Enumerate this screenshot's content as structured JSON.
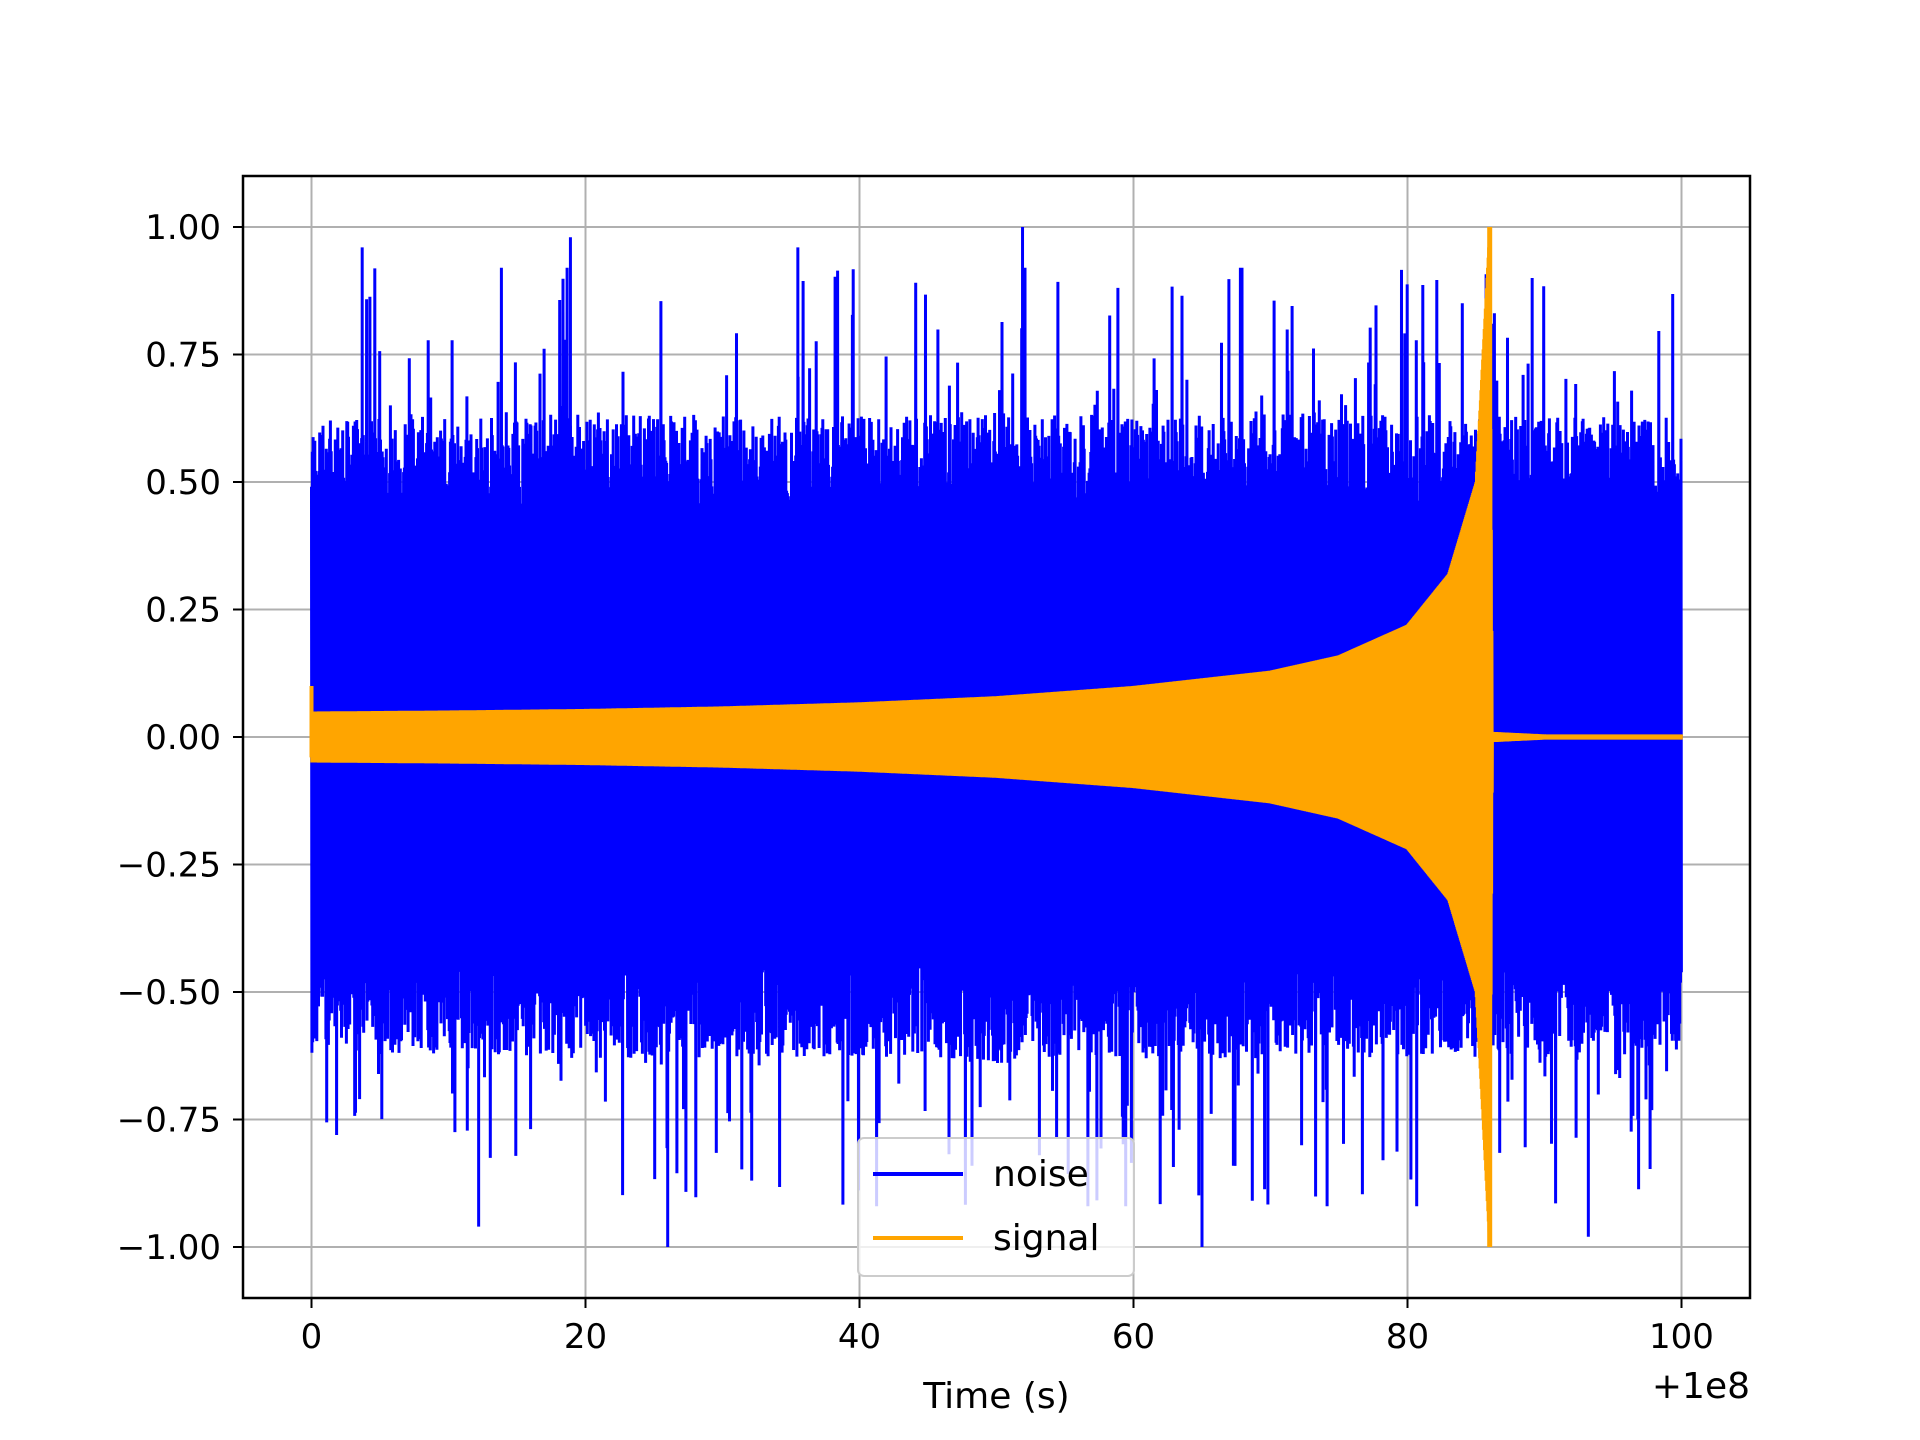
{
  "chart_data": {
    "type": "line",
    "title": "",
    "xlabel": "Time (s)",
    "ylabel": "",
    "x_offset_label": "+1e8",
    "xlim": [
      -5,
      105
    ],
    "ylim": [
      -1.1,
      1.1
    ],
    "x_ticks": [
      0,
      20,
      40,
      60,
      80,
      100
    ],
    "y_ticks": [
      1.0,
      0.75,
      0.5,
      0.25,
      0.0,
      -0.25,
      -0.5,
      -0.75,
      -1.0
    ],
    "x_tick_labels": [
      "0",
      "20",
      "40",
      "60",
      "80",
      "100"
    ],
    "y_tick_labels": [
      "1.00",
      "0.75",
      "0.50",
      "0.25",
      "0.00",
      "−0.25",
      "−0.50",
      "−0.75",
      "−1.00"
    ],
    "grid": true,
    "legend_position": "bottom-center",
    "series": [
      {
        "name": "noise",
        "color": "#0000ff",
        "description_range": [
          0,
          100
        ],
        "x": [
          0,
          10,
          20,
          30,
          40,
          50,
          60,
          70,
          80,
          86,
          90,
          100
        ],
        "upper_envelope": [
          0.62,
          0.63,
          0.64,
          0.63,
          0.63,
          0.64,
          0.63,
          0.64,
          0.63,
          0.64,
          0.63,
          0.63
        ],
        "lower_envelope": [
          -0.62,
          -0.63,
          -0.63,
          -0.63,
          -0.63,
          -0.64,
          -0.63,
          -0.63,
          -0.63,
          -0.63,
          -0.63,
          -0.62
        ],
        "peaks_x": [
          3.7,
          18.9,
          35.5,
          51.9,
          89.1,
          26.0,
          12.2,
          65.0,
          93.2
        ],
        "peaks_y": [
          0.96,
          0.98,
          0.96,
          1.0,
          0.9,
          -1.0,
          -0.96,
          -1.0,
          -0.98
        ]
      },
      {
        "name": "signal",
        "color": "#ffa500",
        "x": [
          0,
          10,
          20,
          30,
          40,
          50,
          60,
          70,
          75,
          80,
          83,
          85,
          86,
          86.2,
          90,
          100
        ],
        "amplitude": [
          0.05,
          0.052,
          0.055,
          0.06,
          0.068,
          0.08,
          0.1,
          0.13,
          0.16,
          0.22,
          0.32,
          0.5,
          1.0,
          0.01,
          0.005,
          0.005
        ]
      }
    ]
  }
}
